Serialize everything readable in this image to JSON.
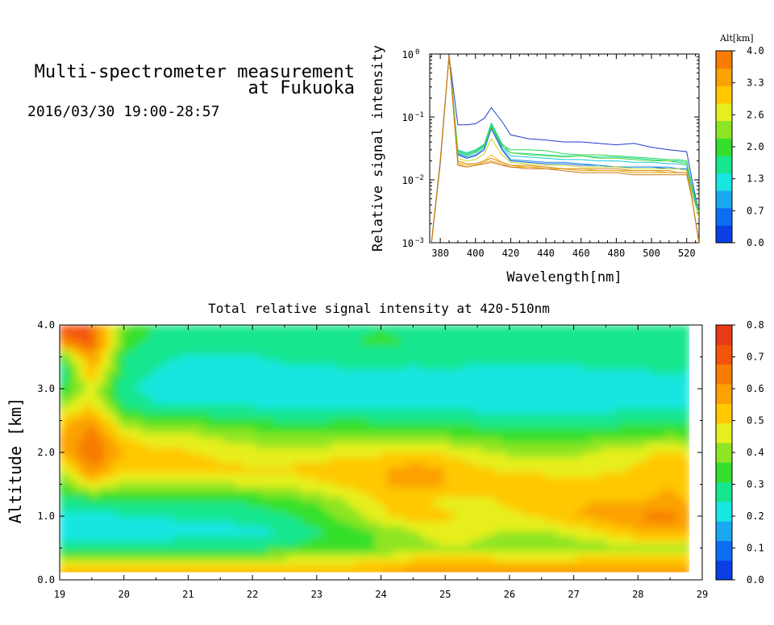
{
  "header": {
    "title_line1": "Multi-spectrometer measurement",
    "title_line2": "at Fukuoka",
    "datetime": "2016/03/30 19:00-28:57"
  },
  "chart_data": [
    {
      "type": "line",
      "xlabel": "Wavelength[nm]",
      "ylabel": "Relative signal intensity",
      "yscale": "log",
      "ylim": [
        0.001,
        1
      ],
      "xlim": [
        374,
        527
      ],
      "x_ticks": [
        380,
        400,
        420,
        440,
        460,
        480,
        500,
        520
      ],
      "y_ticks": [
        {
          "value": 1,
          "mantissa": "10",
          "exp": "0"
        },
        {
          "value": 0.1,
          "mantissa": "10",
          "exp": "−1"
        },
        {
          "value": 0.01,
          "mantissa": "10",
          "exp": "−2"
        },
        {
          "value": 0.001,
          "mantissa": "10",
          "exp": "−3"
        }
      ],
      "x": [
        375,
        380,
        385,
        390,
        395,
        400,
        405,
        409,
        415,
        420,
        430,
        440,
        450,
        460,
        470,
        480,
        490,
        500,
        510,
        515,
        520,
        523,
        527
      ],
      "colorbar": {
        "title": "Alt[km]",
        "ticks": [
          "0.0",
          "0.7",
          "1.3",
          "2.0",
          "2.6",
          "3.3",
          "4.0"
        ],
        "range": [
          0,
          4
        ],
        "colors": [
          "#0a3fe6",
          "#0b6ef5",
          "#1aa8f2",
          "#18e6e0",
          "#16e68e",
          "#35e02c",
          "#8ee524",
          "#e6ef1f",
          "#ffc800",
          "#fba101",
          "#f87d02"
        ]
      },
      "series": [
        {
          "altitude": 0.0,
          "color": "#1e3fc8",
          "values": [
            0.001,
            0.018,
            0.95,
            0.075,
            0.075,
            0.078,
            0.095,
            0.14,
            0.085,
            0.052,
            0.045,
            0.043,
            0.04,
            0.04,
            0.038,
            0.036,
            0.038,
            0.033,
            0.03,
            0.029,
            0.028,
            0.01,
            0.003
          ]
        },
        {
          "altitude": 0.3,
          "color": "#1a5fe0",
          "values": [
            0.001,
            0.02,
            0.95,
            0.025,
            0.022,
            0.024,
            0.03,
            0.065,
            0.03,
            0.02,
            0.019,
            0.018,
            0.018,
            0.017,
            0.017,
            0.016,
            0.016,
            0.016,
            0.015,
            0.015,
            0.015,
            0.006,
            0.003
          ]
        },
        {
          "altitude": 0.7,
          "color": "#188ee6",
          "values": [
            0.001,
            0.02,
            0.95,
            0.026,
            0.023,
            0.025,
            0.032,
            0.07,
            0.032,
            0.021,
            0.02,
            0.019,
            0.019,
            0.018,
            0.017,
            0.016,
            0.016,
            0.016,
            0.016,
            0.015,
            0.015,
            0.006,
            0.003
          ]
        },
        {
          "altitude": 1.0,
          "color": "#14c8d8",
          "values": [
            0.001,
            0.02,
            0.95,
            0.028,
            0.025,
            0.028,
            0.035,
            0.075,
            0.035,
            0.024,
            0.023,
            0.022,
            0.021,
            0.021,
            0.02,
            0.02,
            0.019,
            0.019,
            0.018,
            0.018,
            0.017,
            0.007,
            0.003
          ]
        },
        {
          "altitude": 1.3,
          "color": "#16d9a0",
          "values": [
            0.001,
            0.02,
            0.95,
            0.03,
            0.027,
            0.03,
            0.037,
            0.08,
            0.038,
            0.027,
            0.026,
            0.025,
            0.024,
            0.024,
            0.023,
            0.023,
            0.022,
            0.021,
            0.02,
            0.02,
            0.019,
            0.008,
            0.003
          ]
        },
        {
          "altitude": 1.7,
          "color": "#2ad85a",
          "values": [
            0.001,
            0.02,
            0.95,
            0.029,
            0.026,
            0.029,
            0.036,
            0.075,
            0.036,
            0.03,
            0.03,
            0.029,
            0.026,
            0.025,
            0.025,
            0.024,
            0.023,
            0.022,
            0.021,
            0.021,
            0.02,
            0.008,
            0.003
          ]
        },
        {
          "altitude": 2.0,
          "color": "#5ad43a",
          "values": [
            0.001,
            0.02,
            0.95,
            0.027,
            0.024,
            0.027,
            0.034,
            0.07,
            0.034,
            0.027,
            0.025,
            0.024,
            0.023,
            0.024,
            0.022,
            0.022,
            0.021,
            0.02,
            0.02,
            0.019,
            0.018,
            0.008,
            0.003
          ]
        },
        {
          "altitude": 2.6,
          "color": "#c8d828",
          "values": [
            0.001,
            0.02,
            0.95,
            0.022,
            0.02,
            0.021,
            0.026,
            0.045,
            0.025,
            0.019,
            0.018,
            0.017,
            0.017,
            0.016,
            0.016,
            0.016,
            0.015,
            0.015,
            0.015,
            0.015,
            0.014,
            0.006,
            0.0025
          ]
        },
        {
          "altitude": 3.0,
          "color": "#f0c020",
          "values": [
            0.001,
            0.02,
            0.95,
            0.019,
            0.017,
            0.018,
            0.02,
            0.025,
            0.019,
            0.017,
            0.016,
            0.016,
            0.015,
            0.015,
            0.014,
            0.014,
            0.014,
            0.014,
            0.013,
            0.013,
            0.013,
            0.005,
            0.001
          ]
        },
        {
          "altitude": 3.3,
          "color": "#e8a010",
          "values": [
            0.001,
            0.02,
            0.95,
            0.018,
            0.016,
            0.017,
            0.019,
            0.02,
            0.018,
            0.016,
            0.016,
            0.015,
            0.015,
            0.014,
            0.014,
            0.014,
            0.013,
            0.013,
            0.013,
            0.013,
            0.013,
            0.005,
            0.001
          ]
        },
        {
          "altitude": 3.7,
          "color": "#d88812",
          "values": [
            0.001,
            0.02,
            0.95,
            0.02,
            0.018,
            0.018,
            0.02,
            0.022,
            0.019,
            0.017,
            0.017,
            0.016,
            0.015,
            0.015,
            0.015,
            0.015,
            0.014,
            0.014,
            0.014,
            0.013,
            0.013,
            0.005,
            0.001
          ]
        },
        {
          "altitude": 4.0,
          "color": "#c8781a",
          "values": [
            0.001,
            0.02,
            0.95,
            0.017,
            0.016,
            0.017,
            0.018,
            0.019,
            0.017,
            0.016,
            0.015,
            0.015,
            0.014,
            0.013,
            0.013,
            0.013,
            0.012,
            0.012,
            0.012,
            0.012,
            0.012,
            0.005,
            0.001
          ]
        }
      ]
    },
    {
      "type": "heatmap",
      "title": "Total relative signal intensity at 420-510nm",
      "ylabel": "Altitude [km]",
      "xlim": [
        19,
        29
      ],
      "ylim": [
        0,
        4
      ],
      "data_x_range": [
        19,
        28.8
      ],
      "x_ticks": [
        "19",
        "20",
        "21",
        "22",
        "23",
        "24",
        "25",
        "26",
        "27",
        "28",
        "29"
      ],
      "y_ticks": [
        "0.0",
        "1.0",
        "2.0",
        "3.0",
        "4.0"
      ],
      "colorbar": {
        "range": [
          0,
          0.8
        ],
        "ticks": [
          "0.0",
          "0.1",
          "0.2",
          "0.3",
          "0.4",
          "0.5",
          "0.6",
          "0.7",
          "0.8"
        ],
        "colors": [
          "#0a3fe6",
          "#0b6ef5",
          "#1aa8f2",
          "#18e6e0",
          "#16e68e",
          "#35e02c",
          "#8ee524",
          "#e6ef1f",
          "#ffc800",
          "#fba101",
          "#f87d02",
          "#f2550a",
          "#e83a14"
        ]
      },
      "altitudes_km": [
        0.0,
        0.25,
        0.5,
        0.75,
        1.0,
        1.25,
        1.5,
        1.75,
        2.0,
        2.25,
        2.5,
        2.75,
        3.0,
        3.25,
        3.5,
        3.75,
        4.0
      ],
      "times_h": [
        19,
        19.5,
        20,
        20.5,
        21,
        21.5,
        22,
        22.5,
        23,
        23.5,
        24,
        24.5,
        25,
        25.5,
        26,
        26.5,
        27,
        27.5,
        28,
        28.5,
        28.8
      ],
      "values": [
        [
          0.58,
          0.58,
          0.58,
          0.58,
          0.58,
          0.58,
          0.58,
          0.58,
          0.58,
          0.58,
          0.58,
          0.6,
          0.6,
          0.6,
          0.6,
          0.6,
          0.6,
          0.6,
          0.6,
          0.6,
          0.6
        ],
        [
          0.5,
          0.5,
          0.5,
          0.5,
          0.5,
          0.5,
          0.5,
          0.5,
          0.5,
          0.5,
          0.52,
          0.55,
          0.55,
          0.55,
          0.55,
          0.55,
          0.55,
          0.55,
          0.55,
          0.55,
          0.55
        ],
        [
          0.3,
          0.3,
          0.3,
          0.3,
          0.3,
          0.3,
          0.3,
          0.32,
          0.33,
          0.33,
          0.38,
          0.4,
          0.42,
          0.42,
          0.38,
          0.38,
          0.4,
          0.4,
          0.42,
          0.42,
          0.42
        ],
        [
          0.2,
          0.2,
          0.2,
          0.2,
          0.22,
          0.22,
          0.22,
          0.25,
          0.3,
          0.32,
          0.38,
          0.42,
          0.48,
          0.45,
          0.42,
          0.42,
          0.45,
          0.5,
          0.55,
          0.55,
          0.55
        ],
        [
          0.22,
          0.22,
          0.24,
          0.24,
          0.26,
          0.26,
          0.28,
          0.3,
          0.34,
          0.4,
          0.48,
          0.52,
          0.5,
          0.48,
          0.48,
          0.5,
          0.55,
          0.58,
          0.62,
          0.65,
          0.6
        ],
        [
          0.28,
          0.3,
          0.3,
          0.3,
          0.3,
          0.3,
          0.32,
          0.34,
          0.38,
          0.44,
          0.5,
          0.5,
          0.48,
          0.48,
          0.5,
          0.52,
          0.55,
          0.55,
          0.55,
          0.58,
          0.55
        ],
        [
          0.35,
          0.5,
          0.4,
          0.42,
          0.42,
          0.42,
          0.44,
          0.45,
          0.48,
          0.5,
          0.55,
          0.58,
          0.55,
          0.55,
          0.52,
          0.52,
          0.52,
          0.52,
          0.5,
          0.55,
          0.5
        ],
        [
          0.45,
          0.62,
          0.5,
          0.52,
          0.52,
          0.5,
          0.5,
          0.5,
          0.52,
          0.55,
          0.55,
          0.58,
          0.55,
          0.5,
          0.48,
          0.48,
          0.45,
          0.48,
          0.5,
          0.52,
          0.5
        ],
        [
          0.55,
          0.68,
          0.55,
          0.5,
          0.5,
          0.48,
          0.46,
          0.45,
          0.45,
          0.48,
          0.48,
          0.5,
          0.48,
          0.45,
          0.42,
          0.42,
          0.42,
          0.45,
          0.48,
          0.5,
          0.48
        ],
        [
          0.55,
          0.65,
          0.5,
          0.45,
          0.45,
          0.42,
          0.4,
          0.38,
          0.38,
          0.4,
          0.38,
          0.4,
          0.38,
          0.36,
          0.35,
          0.35,
          0.35,
          0.35,
          0.36,
          0.38,
          0.36
        ],
        [
          0.52,
          0.6,
          0.4,
          0.35,
          0.35,
          0.33,
          0.32,
          0.3,
          0.3,
          0.32,
          0.3,
          0.3,
          0.3,
          0.28,
          0.28,
          0.28,
          0.28,
          0.28,
          0.3,
          0.3,
          0.3
        ],
        [
          0.4,
          0.5,
          0.3,
          0.25,
          0.25,
          0.24,
          0.24,
          0.22,
          0.22,
          0.24,
          0.24,
          0.24,
          0.24,
          0.22,
          0.22,
          0.22,
          0.22,
          0.22,
          0.24,
          0.24,
          0.24
        ],
        [
          0.3,
          0.45,
          0.26,
          0.22,
          0.22,
          0.2,
          0.2,
          0.2,
          0.2,
          0.22,
          0.22,
          0.22,
          0.22,
          0.2,
          0.2,
          0.2,
          0.2,
          0.2,
          0.22,
          0.22,
          0.22
        ],
        [
          0.25,
          0.55,
          0.28,
          0.24,
          0.22,
          0.22,
          0.2,
          0.22,
          0.22,
          0.24,
          0.24,
          0.22,
          0.24,
          0.22,
          0.22,
          0.22,
          0.22,
          0.24,
          0.24,
          0.25,
          0.24
        ],
        [
          0.3,
          0.6,
          0.3,
          0.26,
          0.24,
          0.24,
          0.24,
          0.26,
          0.26,
          0.28,
          0.28,
          0.28,
          0.28,
          0.26,
          0.26,
          0.26,
          0.28,
          0.28,
          0.28,
          0.28,
          0.28
        ],
        [
          0.65,
          0.7,
          0.35,
          0.28,
          0.28,
          0.28,
          0.3,
          0.3,
          0.3,
          0.3,
          0.32,
          0.3,
          0.3,
          0.3,
          0.3,
          0.3,
          0.3,
          0.3,
          0.3,
          0.3,
          0.3
        ],
        [
          0.7,
          0.7,
          0.38,
          0.3,
          0.3,
          0.3,
          0.3,
          0.3,
          0.3,
          0.3,
          0.3,
          0.3,
          0.3,
          0.3,
          0.3,
          0.3,
          0.3,
          0.3,
          0.3,
          0.3,
          0.3
        ]
      ]
    }
  ]
}
